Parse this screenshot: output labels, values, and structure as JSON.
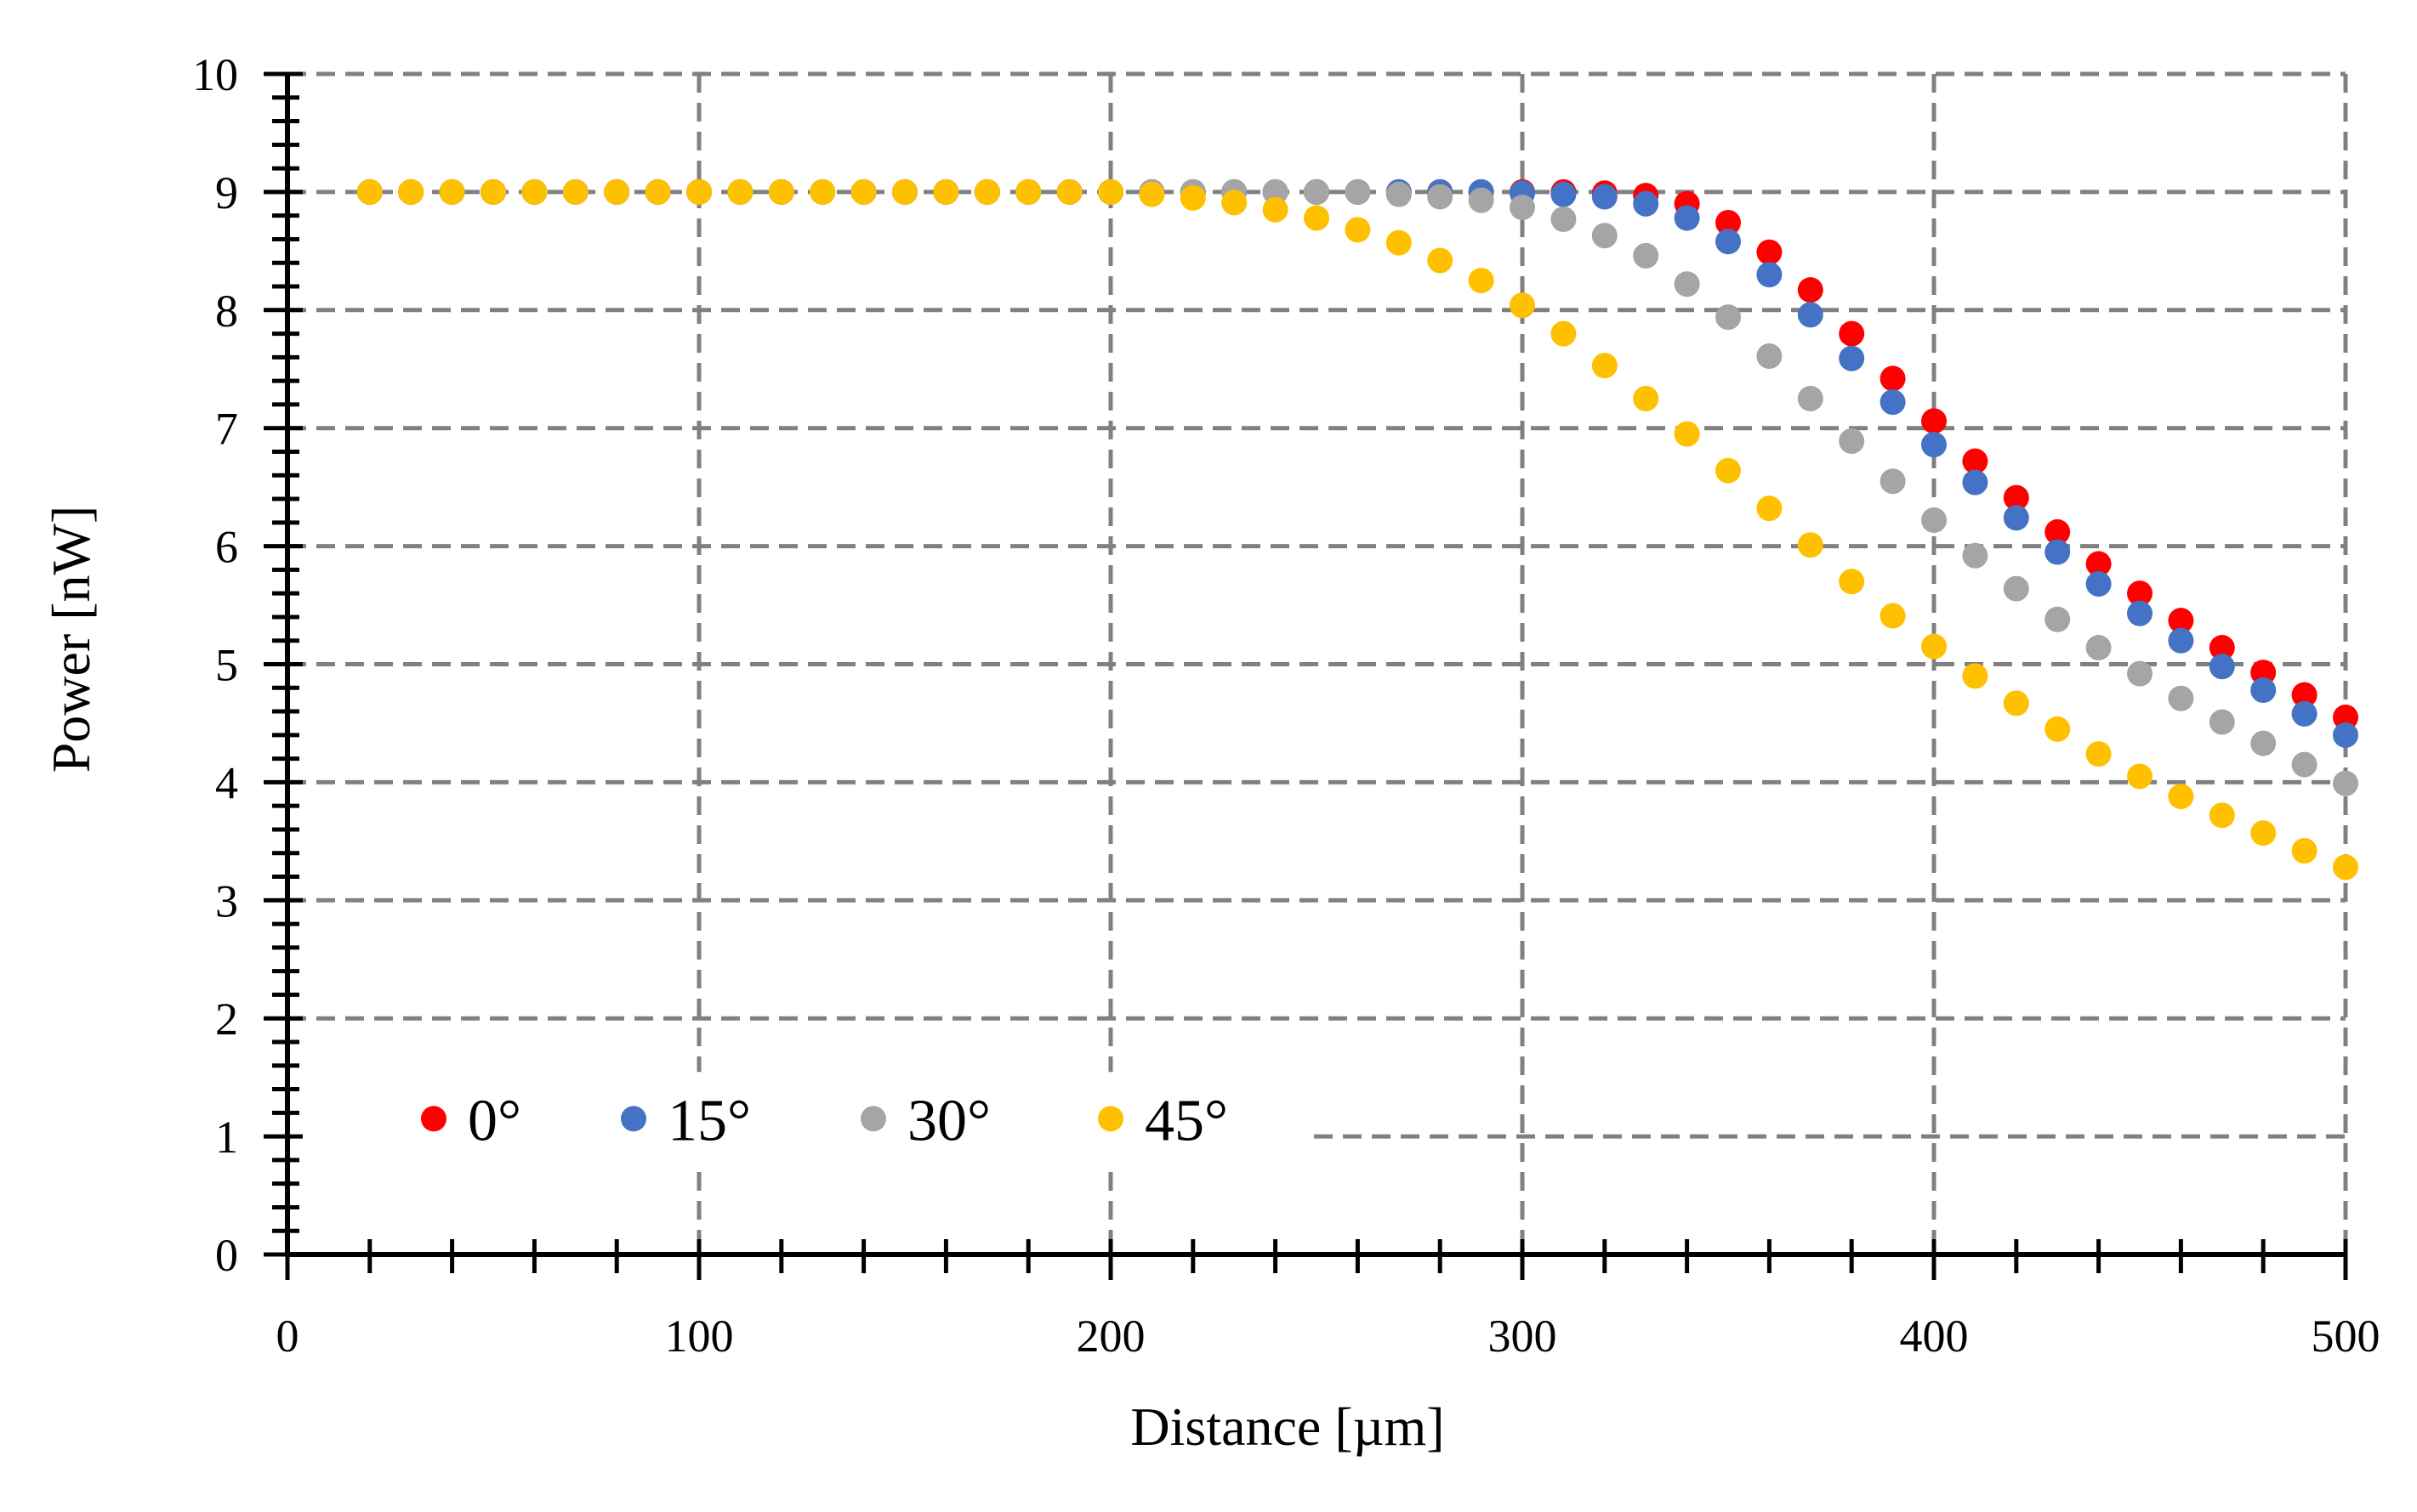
{
  "chart_data": {
    "type": "scatter",
    "title": "",
    "xlabel": "Distance [µm]",
    "ylabel": "Power [nW]",
    "xlim": [
      0,
      500
    ],
    "ylim": [
      0,
      10
    ],
    "x_ticks": [
      0,
      100,
      200,
      300,
      400,
      500
    ],
    "y_ticks": [
      0,
      1,
      2,
      3,
      4,
      5,
      6,
      7,
      8,
      9,
      10
    ],
    "x_tick_labels": [
      "0",
      "100",
      "200",
      "300",
      "400",
      "500"
    ],
    "y_tick_labels": [
      "0",
      "1",
      "2",
      "3",
      "4",
      "5",
      "6",
      "7",
      "8",
      "9",
      "10"
    ],
    "grid": "dashed",
    "legend": "bottom-left",
    "x": [
      20,
      30,
      40,
      50,
      60,
      70,
      80,
      90,
      100,
      110,
      120,
      130,
      140,
      150,
      160,
      170,
      180,
      190,
      200,
      210,
      220,
      230,
      240,
      250,
      260,
      270,
      280,
      290,
      300,
      310,
      320,
      330,
      340,
      350,
      360,
      370,
      380,
      390,
      400,
      410,
      420,
      430,
      440,
      450,
      460,
      470,
      480,
      490,
      500
    ],
    "series": [
      {
        "name": "0°",
        "color": "#ff0000",
        "values": [
          9.0,
          9.0,
          9.0,
          9.0,
          9.0,
          9.0,
          9.0,
          9.0,
          9.0,
          9.0,
          9.0,
          9.0,
          9.0,
          9.0,
          9.0,
          9.0,
          9.0,
          9.0,
          9.0,
          9.0,
          9.0,
          9.0,
          9.0,
          9.0,
          9.0,
          9.0,
          9.0,
          9.0,
          9.0,
          9.0,
          8.99,
          8.97,
          8.9,
          8.74,
          8.49,
          8.17,
          7.8,
          7.42,
          7.06,
          6.72,
          6.41,
          6.12,
          5.85,
          5.6,
          5.37,
          5.14,
          4.93,
          4.74,
          4.55
        ]
      },
      {
        "name": "15°",
        "color": "#4472c4",
        "values": [
          9.0,
          9.0,
          9.0,
          9.0,
          9.0,
          9.0,
          9.0,
          9.0,
          9.0,
          9.0,
          9.0,
          9.0,
          9.0,
          9.0,
          9.0,
          9.0,
          9.0,
          9.0,
          9.0,
          9.0,
          9.0,
          9.0,
          9.0,
          9.0,
          9.0,
          9.0,
          9.0,
          9.0,
          8.99,
          8.98,
          8.96,
          8.9,
          8.78,
          8.58,
          8.3,
          7.96,
          7.59,
          7.22,
          6.86,
          6.54,
          6.24,
          5.95,
          5.68,
          5.43,
          5.2,
          4.98,
          4.78,
          4.58,
          4.4
        ]
      },
      {
        "name": "30°",
        "color": "#a5a5a5",
        "values": [
          9.0,
          9.0,
          9.0,
          9.0,
          9.0,
          9.0,
          9.0,
          9.0,
          9.0,
          9.0,
          9.0,
          9.0,
          9.0,
          9.0,
          9.0,
          9.0,
          9.0,
          9.0,
          9.0,
          9.0,
          9.0,
          9.0,
          9.0,
          9.0,
          9.0,
          8.98,
          8.96,
          8.93,
          8.87,
          8.77,
          8.63,
          8.46,
          8.22,
          7.94,
          7.61,
          7.25,
          6.89,
          6.55,
          6.22,
          5.92,
          5.64,
          5.38,
          5.14,
          4.92,
          4.71,
          4.51,
          4.33,
          4.15,
          3.99
        ]
      },
      {
        "name": "45°",
        "color": "#ffc000",
        "values": [
          9.0,
          9.0,
          9.0,
          9.0,
          9.0,
          9.0,
          9.0,
          9.0,
          9.0,
          9.0,
          9.0,
          9.0,
          9.0,
          9.0,
          9.0,
          9.0,
          9.0,
          9.0,
          9.0,
          8.98,
          8.95,
          8.91,
          8.85,
          8.78,
          8.68,
          8.57,
          8.42,
          8.25,
          8.04,
          7.8,
          7.53,
          7.25,
          6.95,
          6.64,
          6.32,
          6.01,
          5.7,
          5.41,
          5.15,
          4.9,
          4.67,
          4.45,
          4.24,
          4.05,
          3.88,
          3.72,
          3.57,
          3.42,
          3.28
        ]
      }
    ]
  }
}
